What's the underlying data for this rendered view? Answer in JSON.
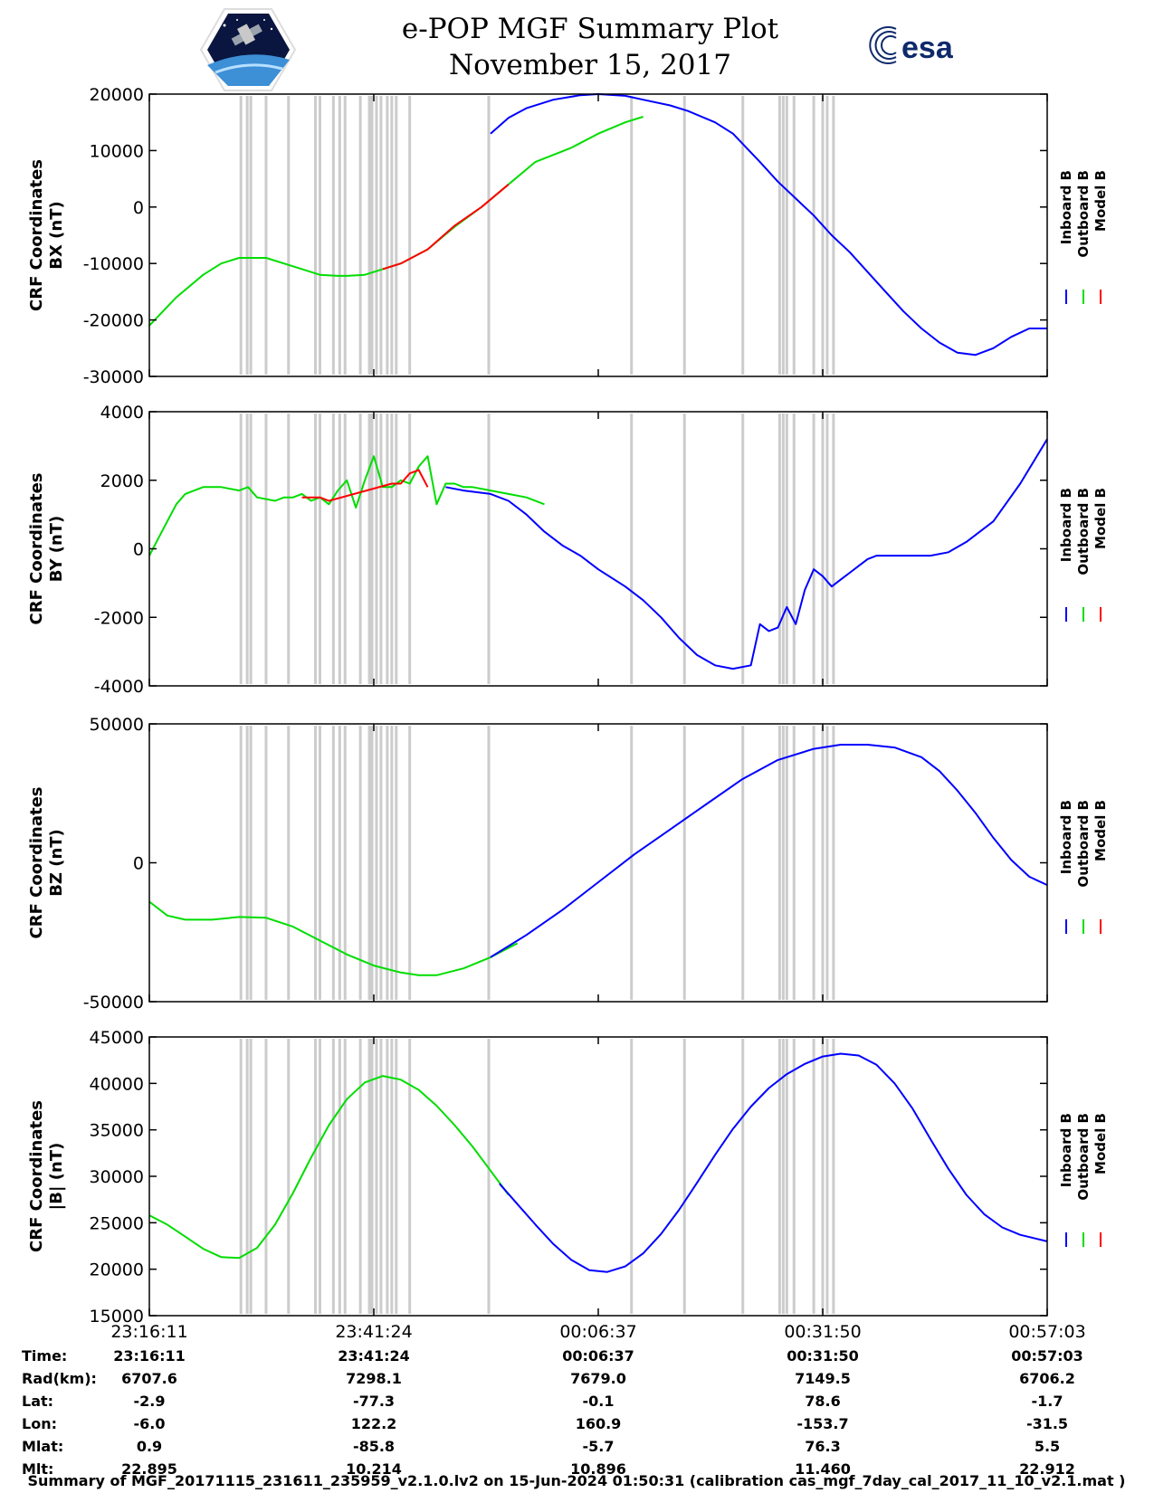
{
  "title": "e-POP MGF Summary Plot",
  "subtitle": "November 15, 2017",
  "logos": {
    "left": "cassiope-mission-logo",
    "right": "esa",
    "right_text": "esa"
  },
  "colors": {
    "inboard": "#0000ff",
    "outboard": "#00dd00",
    "model": "#ff0000",
    "gap": "#cccccc"
  },
  "legend": [
    "Inboard B",
    "Outboard B",
    "Model B"
  ],
  "chart_data": [
    {
      "type": "line",
      "id": "bx",
      "ylabel": [
        "CRF Coordinates",
        "BX (nT)"
      ],
      "ylim": [
        -30000,
        20000
      ],
      "yticks": [
        20000,
        10000,
        0,
        -10000,
        -20000,
        -30000
      ],
      "xlim": [
        0,
        100
      ],
      "series": [
        {
          "name": "Outboard B",
          "x": [
            0,
            3,
            6,
            8,
            10,
            13,
            16,
            19,
            21,
            22,
            24,
            25,
            26,
            28,
            31,
            34,
            37,
            40,
            43,
            47,
            50,
            53,
            55
          ],
          "y": [
            -21000,
            -16000,
            -12000,
            -10000,
            -9000,
            -9000,
            -10500,
            -12000,
            -12200,
            -12200,
            -12000,
            -11500,
            -11000,
            -10000,
            -7500,
            -3500,
            0,
            4000,
            8000,
            10500,
            13000,
            15000,
            16000
          ]
        },
        {
          "name": "Model B",
          "x": [
            26,
            28,
            31,
            34,
            37,
            40
          ],
          "y": [
            -11000,
            -10000,
            -7500,
            -3300,
            0,
            4000
          ]
        },
        {
          "name": "Inboard B",
          "x": [
            38,
            40,
            42,
            45,
            48,
            50,
            53,
            55,
            58,
            60,
            63,
            65,
            68,
            70,
            72,
            74,
            76,
            78,
            80,
            82,
            84,
            86,
            88,
            90,
            92,
            94,
            96,
            98,
            100
          ],
          "y": [
            13000,
            15800,
            17500,
            19000,
            19800,
            20000,
            19700,
            19000,
            18000,
            17000,
            15000,
            13000,
            8000,
            4500,
            1500,
            -1500,
            -5000,
            -8000,
            -11500,
            -15000,
            -18500,
            -21500,
            -24000,
            -25800,
            -26200,
            -25000,
            -23000,
            -21500,
            -21500
          ]
        }
      ]
    },
    {
      "type": "line",
      "id": "by",
      "ylabel": [
        "CRF Coordinates",
        "BY (nT)"
      ],
      "ylim": [
        -4000,
        4000
      ],
      "yticks": [
        4000,
        2000,
        0,
        -2000,
        -4000
      ],
      "xlim": [
        0,
        100
      ],
      "series": [
        {
          "name": "Outboard B",
          "x": [
            0,
            1,
            2,
            3,
            4,
            5,
            6,
            8,
            10,
            11,
            12,
            14,
            15,
            16,
            17,
            18,
            19,
            20,
            21,
            22,
            23,
            24,
            25,
            26,
            27,
            28,
            29,
            30,
            31,
            32,
            33,
            34,
            35,
            36,
            38,
            40,
            42,
            44
          ],
          "y": [
            -200,
            300,
            800,
            1300,
            1600,
            1700,
            1800,
            1800,
            1700,
            1800,
            1500,
            1400,
            1500,
            1500,
            1600,
            1400,
            1500,
            1300,
            1700,
            2000,
            1200,
            2000,
            2700,
            1800,
            1800,
            2000,
            1900,
            2400,
            2700,
            1300,
            1900,
            1900,
            1800,
            1800,
            1700,
            1600,
            1500,
            1300
          ]
        },
        {
          "name": "Model B",
          "x": [
            17,
            18,
            19,
            20,
            27,
            28,
            29,
            30,
            31
          ],
          "y": [
            1500,
            1500,
            1500,
            1400,
            1900,
            1900,
            2200,
            2300,
            1800
          ]
        },
        {
          "name": "Inboard B",
          "x": [
            33,
            35,
            38,
            40,
            42,
            44,
            46,
            48,
            50,
            53,
            55,
            57,
            59,
            61,
            63,
            65,
            67,
            68,
            69,
            70,
            71,
            72,
            73,
            74,
            75,
            76,
            77,
            78,
            79,
            80,
            81,
            82,
            83,
            85,
            87,
            89,
            91,
            94,
            97,
            100
          ],
          "y": [
            1800,
            1700,
            1600,
            1400,
            1000,
            500,
            100,
            -200,
            -600,
            -1100,
            -1500,
            -2000,
            -2600,
            -3100,
            -3400,
            -3500,
            -3400,
            -2200,
            -2400,
            -2300,
            -1700,
            -2200,
            -1200,
            -600,
            -800,
            -1100,
            -900,
            -700,
            -500,
            -300,
            -200,
            -200,
            -200,
            -200,
            -200,
            -100,
            200,
            800,
            1900,
            3200
          ]
        }
      ]
    },
    {
      "type": "line",
      "id": "bz",
      "ylabel": [
        "CRF Coordinates",
        "BZ (nT)"
      ],
      "ylim": [
        -50000,
        50000
      ],
      "yticks": [
        50000,
        0,
        -50000
      ],
      "xlim": [
        0,
        100
      ],
      "series": [
        {
          "name": "Outboard B",
          "x": [
            0,
            2,
            4,
            7,
            10,
            13,
            16,
            19,
            22,
            25,
            28,
            30,
            32,
            35,
            38,
            41
          ],
          "y": [
            -14000,
            -19000,
            -20500,
            -20500,
            -19500,
            -19800,
            -23000,
            -28000,
            -33000,
            -37000,
            -39500,
            -40500,
            -40500,
            -38000,
            -34000,
            -29000
          ]
        },
        {
          "name": "Inboard B",
          "x": [
            38,
            42,
            46,
            50,
            54,
            58,
            62,
            66,
            70,
            74,
            77,
            80,
            83,
            86,
            88,
            90,
            92,
            94,
            96,
            98,
            100
          ],
          "y": [
            -34000,
            -26000,
            -17000,
            -7000,
            3000,
            12000,
            21000,
            30000,
            37000,
            41000,
            42500,
            42500,
            41500,
            38000,
            33000,
            26000,
            18000,
            9000,
            1000,
            -5000,
            -8000
          ]
        }
      ]
    },
    {
      "type": "line",
      "id": "bmag",
      "ylabel": [
        "CRF Coordinates",
        "|B| (nT)"
      ],
      "ylim": [
        15000,
        45000
      ],
      "yticks": [
        45000,
        40000,
        35000,
        30000,
        25000,
        20000,
        15000
      ],
      "xlim": [
        0,
        100
      ],
      "series": [
        {
          "name": "Outboard B",
          "x": [
            0,
            2,
            4,
            6,
            8,
            10,
            12,
            14,
            16,
            18,
            20,
            22,
            24,
            26,
            28,
            30,
            32,
            34,
            36,
            38,
            40
          ],
          "y": [
            25800,
            24800,
            23500,
            22200,
            21300,
            21200,
            22300,
            24800,
            28200,
            32000,
            35500,
            38300,
            40100,
            40800,
            40400,
            39300,
            37600,
            35500,
            33200,
            30600,
            28000
          ]
        },
        {
          "name": "Inboard B",
          "x": [
            39,
            41,
            43,
            45,
            47,
            49,
            51,
            53,
            55,
            57,
            59,
            61,
            63,
            65,
            67,
            69,
            71,
            73,
            75,
            77,
            79,
            81,
            83,
            85,
            87,
            89,
            91,
            93,
            95,
            97,
            100
          ],
          "y": [
            29200,
            27000,
            24800,
            22700,
            21000,
            19900,
            19700,
            20300,
            21700,
            23800,
            26400,
            29300,
            32300,
            35100,
            37500,
            39500,
            41000,
            42100,
            42900,
            43200,
            43000,
            42000,
            40000,
            37300,
            34000,
            30800,
            28000,
            25900,
            24500,
            23700,
            23000
          ]
        }
      ]
    }
  ],
  "gap_markers_pct": [
    10.2,
    10.9,
    11.3,
    13.0,
    15.5,
    18.5,
    19.0,
    20.5,
    21.2,
    21.8,
    23.5,
    24.5,
    24.8,
    25.3,
    25.8,
    26.5,
    27.0,
    27.5,
    29.0,
    37.8,
    53.7,
    59.6,
    66.1,
    70.2,
    70.6,
    71.0,
    71.8,
    74.0,
    75.0,
    75.5,
    76.2
  ],
  "xticks": [
    "23:16:11",
    "23:41:24",
    "00:06:37",
    "00:31:50",
    "00:57:03"
  ],
  "table": [
    {
      "label": "Time:",
      "values": [
        "23:16:11",
        "23:41:24",
        "00:06:37",
        "00:31:50",
        "00:57:03"
      ]
    },
    {
      "label": "Rad(km):",
      "values": [
        "6707.6",
        "7298.1",
        "7679.0",
        "7149.5",
        "6706.2"
      ]
    },
    {
      "label": "Lat:",
      "values": [
        "-2.9",
        "-77.3",
        "-0.1",
        "78.6",
        "-1.7"
      ]
    },
    {
      "label": "Lon:",
      "values": [
        "-6.0",
        "122.2",
        "160.9",
        "-153.7",
        "-31.5"
      ]
    },
    {
      "label": "Mlat:",
      "values": [
        "0.9",
        "-85.8",
        "-5.7",
        "76.3",
        "5.5"
      ]
    },
    {
      "label": "Mlt:",
      "values": [
        "22.895",
        "10.214",
        "10.896",
        "11.460",
        "22.912"
      ]
    }
  ],
  "footer": "Summary of MGF_20171115_231611_235959_v2.1.0.lv2 on 15-Jun-2024 01:50:31 (calibration cas_mgf_7day_cal_2017_11_10_v2.1.mat )"
}
